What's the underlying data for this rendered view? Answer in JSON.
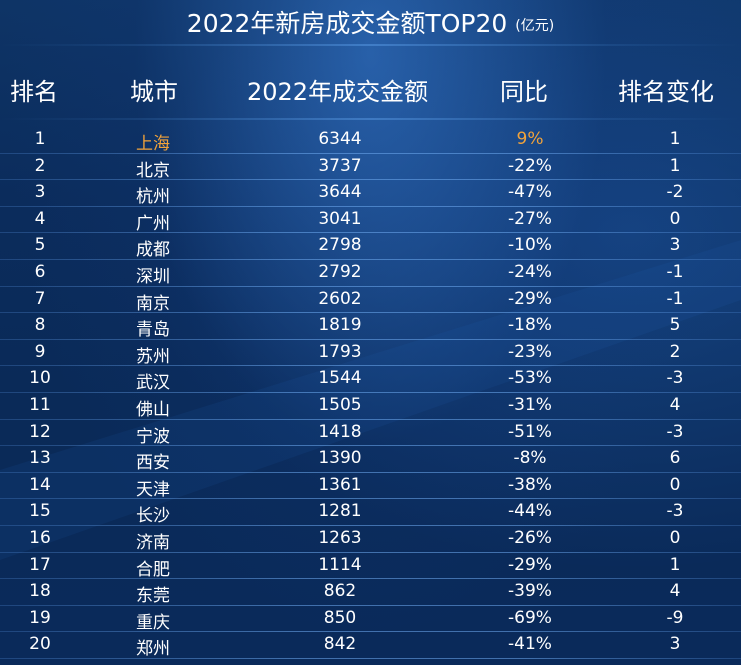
{
  "title": "2022年新房成交金额TOP20",
  "title_unit": "(亿元)",
  "headers": {
    "rank": "排名",
    "city": "城市",
    "amount": "2022年成交金额",
    "yoy": "同比",
    "change": "排名变化"
  },
  "colors": {
    "highlight": "#f2a33a",
    "text": "#ffffff",
    "background": "#0b2a57"
  },
  "rows": [
    {
      "rank": "1",
      "city": "上海",
      "amount": "6344",
      "yoy": "9%",
      "change": "1",
      "highlight": true
    },
    {
      "rank": "2",
      "city": "北京",
      "amount": "3737",
      "yoy": "-22%",
      "change": "1"
    },
    {
      "rank": "3",
      "city": "杭州",
      "amount": "3644",
      "yoy": "-47%",
      "change": "-2"
    },
    {
      "rank": "4",
      "city": "广州",
      "amount": "3041",
      "yoy": "-27%",
      "change": "0"
    },
    {
      "rank": "5",
      "city": "成都",
      "amount": "2798",
      "yoy": "-10%",
      "change": "3"
    },
    {
      "rank": "6",
      "city": "深圳",
      "amount": "2792",
      "yoy": "-24%",
      "change": "-1"
    },
    {
      "rank": "7",
      "city": "南京",
      "amount": "2602",
      "yoy": "-29%",
      "change": "-1"
    },
    {
      "rank": "8",
      "city": "青岛",
      "amount": "1819",
      "yoy": "-18%",
      "change": "5"
    },
    {
      "rank": "9",
      "city": "苏州",
      "amount": "1793",
      "yoy": "-23%",
      "change": "2"
    },
    {
      "rank": "10",
      "city": "武汉",
      "amount": "1544",
      "yoy": "-53%",
      "change": "-3"
    },
    {
      "rank": "11",
      "city": "佛山",
      "amount": "1505",
      "yoy": "-31%",
      "change": "4"
    },
    {
      "rank": "12",
      "city": "宁波",
      "amount": "1418",
      "yoy": "-51%",
      "change": "-3"
    },
    {
      "rank": "13",
      "city": "西安",
      "amount": "1390",
      "yoy": "-8%",
      "change": "6"
    },
    {
      "rank": "14",
      "city": "天津",
      "amount": "1361",
      "yoy": "-38%",
      "change": "0"
    },
    {
      "rank": "15",
      "city": "长沙",
      "amount": "1281",
      "yoy": "-44%",
      "change": "-3"
    },
    {
      "rank": "16",
      "city": "济南",
      "amount": "1263",
      "yoy": "-26%",
      "change": "0"
    },
    {
      "rank": "17",
      "city": "合肥",
      "amount": "1114",
      "yoy": "-29%",
      "change": "1"
    },
    {
      "rank": "18",
      "city": "东莞",
      "amount": "862",
      "yoy": "-39%",
      "change": "4"
    },
    {
      "rank": "19",
      "city": "重庆",
      "amount": "850",
      "yoy": "-69%",
      "change": "-9"
    },
    {
      "rank": "20",
      "city": "郑州",
      "amount": "842",
      "yoy": "-41%",
      "change": "3"
    }
  ]
}
